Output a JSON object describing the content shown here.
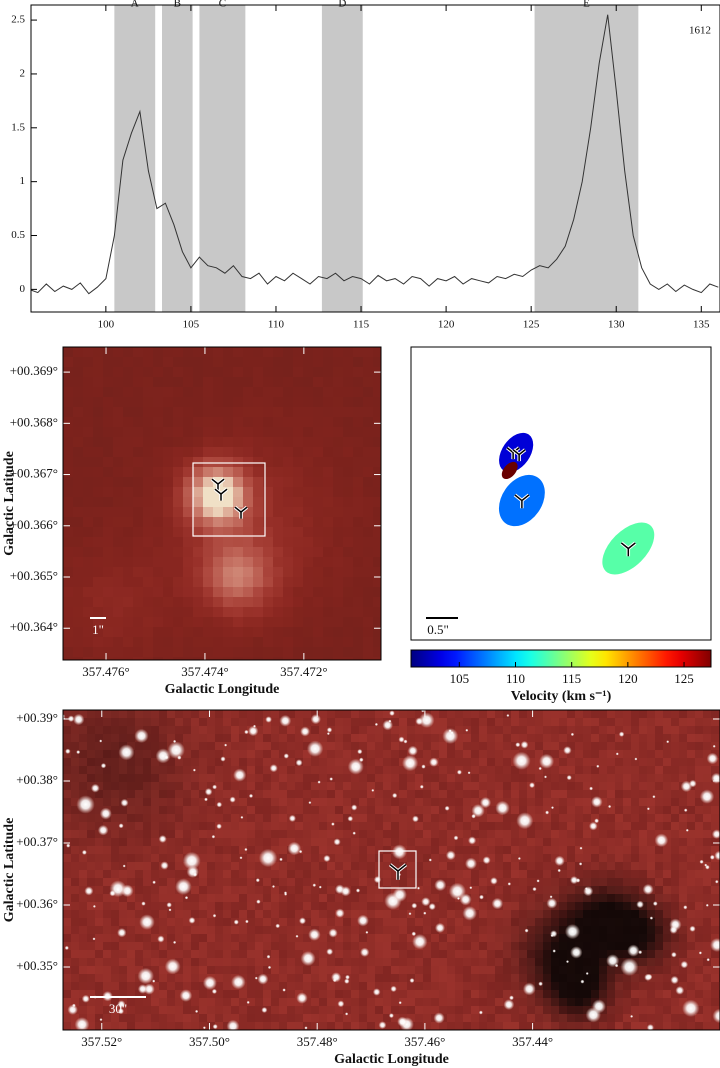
{
  "chart_data": [
    {
      "type": "line",
      "x": [
        95.5,
        96,
        96.5,
        97,
        97.5,
        98,
        98.5,
        99,
        99.5,
        100,
        100.5,
        101,
        101.5,
        102,
        102.5,
        103,
        103.5,
        104,
        104.5,
        105,
        105.5,
        106,
        106.5,
        107,
        107.5,
        108,
        108.5,
        109,
        109.5,
        110,
        110.5,
        111,
        111.5,
        112,
        112.5,
        113,
        113.5,
        114,
        114.5,
        115,
        115.5,
        116,
        116.5,
        117,
        117.5,
        118,
        118.5,
        119,
        119.5,
        120,
        120.5,
        121,
        121.5,
        122,
        122.5,
        123,
        123.5,
        124,
        124.5,
        125,
        125.5,
        126,
        126.5,
        127,
        127.5,
        128,
        128.5,
        129,
        129.5,
        130,
        130.5,
        131,
        131.5,
        132,
        132.5,
        133,
        133.5,
        134,
        134.5,
        135,
        135.5,
        136
      ],
      "values": [
        0.0,
        -0.03,
        0.05,
        -0.02,
        0.03,
        0.0,
        0.06,
        -0.04,
        0.02,
        0.1,
        0.5,
        1.2,
        1.45,
        1.65,
        1.1,
        0.75,
        0.8,
        0.6,
        0.35,
        0.2,
        0.3,
        0.22,
        0.2,
        0.15,
        0.22,
        0.12,
        0.1,
        0.15,
        0.05,
        0.12,
        0.08,
        0.15,
        0.1,
        0.05,
        0.12,
        0.1,
        0.15,
        0.08,
        0.12,
        0.1,
        0.05,
        0.13,
        0.08,
        0.1,
        0.05,
        0.12,
        0.1,
        0.03,
        0.1,
        0.08,
        0.12,
        0.05,
        0.1,
        0.08,
        0.06,
        0.12,
        0.1,
        0.14,
        0.12,
        0.18,
        0.22,
        0.2,
        0.28,
        0.4,
        0.65,
        1.0,
        1.5,
        2.1,
        2.55,
        1.85,
        1.1,
        0.5,
        0.2,
        0.05,
        0.0,
        0.05,
        -0.02,
        0.04,
        0.0,
        -0.03,
        0.05,
        0.02
      ],
      "color": "#333333",
      "xlim": [
        95.6,
        136.1
      ],
      "ylim": [
        -0.21,
        2.64
      ],
      "xticks": [
        100,
        105,
        110,
        115,
        120,
        125,
        130,
        135
      ],
      "yticks": [
        0,
        0.5,
        1,
        1.5,
        2,
        2.5
      ],
      "regions": [
        {
          "label": "A",
          "range": [
            100.5,
            102.9
          ]
        },
        {
          "label": "B",
          "range": [
            103.3,
            105.1
          ]
        },
        {
          "label": "C",
          "range": [
            105.5,
            108.2
          ]
        },
        {
          "label": "D",
          "range": [
            112.7,
            115.1
          ]
        },
        {
          "label": "E",
          "range": [
            125.2,
            131.3
          ]
        }
      ],
      "region_color": "#c8c8c8",
      "annotation": "1612"
    },
    {
      "type": "image",
      "xlabel": "Galactic Longitude",
      "ylabel": "Galactic Latitude",
      "xlim": [
        357.47687,
        357.47044
      ],
      "ylim": [
        0.36338,
        0.36949
      ],
      "xticks": [
        {
          "value": 357.476,
          "label": "357.476°"
        },
        {
          "value": 357.474,
          "label": "357.474°"
        },
        {
          "value": 357.472,
          "label": "357.472°"
        }
      ],
      "yticks": [
        {
          "value": 0.369,
          "label": "+00.369°"
        },
        {
          "value": 0.368,
          "label": "+00.368°"
        },
        {
          "value": 0.367,
          "label": "+00.367°"
        },
        {
          "value": 0.366,
          "label": "+00.366°"
        },
        {
          "value": 0.365,
          "label": "+00.365°"
        },
        {
          "value": 0.364,
          "label": "+00.364°"
        }
      ],
      "scale_label": "1\""
    },
    {
      "type": "scatter",
      "x": [
        -0.7,
        -0.61,
        1.05,
        -0.8
      ],
      "y": [
        0.64,
        -0.11,
        -0.86,
        0.36
      ],
      "values": [
        103,
        107,
        113,
        128
      ],
      "xlim": [
        -2.34,
        2.34
      ],
      "ylim": [
        -2.29,
        2.29
      ],
      "clim": [
        100.7,
        127.4
      ],
      "cticks": [
        105,
        110,
        115,
        120,
        125
      ],
      "clabel": "Velocity (km s⁻¹)",
      "scale_label": "0.5\""
    },
    {
      "type": "image",
      "xlabel": "Galactic Longitude",
      "ylabel": "Galactic Latitude",
      "xlim": [
        357.5272,
        357.4052
      ],
      "ylim": [
        0.33984,
        0.39145
      ],
      "xticks": [
        {
          "value": 357.52,
          "label": "357.52°"
        },
        {
          "value": 357.5,
          "label": "357.50°"
        },
        {
          "value": 357.48,
          "label": "357.48°"
        },
        {
          "value": 357.46,
          "label": "357.46°"
        },
        {
          "value": 357.44,
          "label": "357.44°"
        }
      ],
      "yticks": [
        {
          "value": 0.39,
          "label": "+00.39°"
        },
        {
          "value": 0.38,
          "label": "+00.38°"
        },
        {
          "value": 0.37,
          "label": "+00.37°"
        },
        {
          "value": 0.36,
          "label": "+00.36°"
        },
        {
          "value": 0.35,
          "label": "+00.35°"
        }
      ],
      "scale_label": "30\""
    }
  ]
}
